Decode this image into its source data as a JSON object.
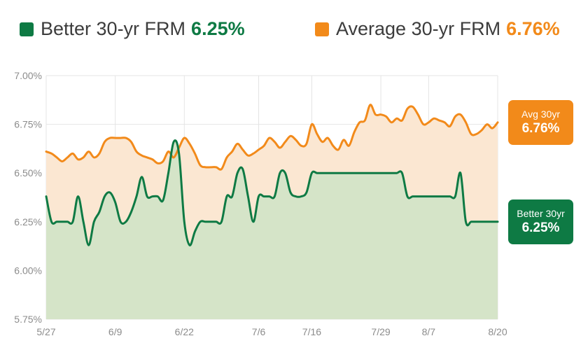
{
  "legend": {
    "better_label": "Better 30-yr FRM",
    "better_value": "6.25%",
    "average_label": "Average 30-yr FRM",
    "average_value": "6.76%"
  },
  "badges": {
    "avg_label": "Avg 30yr",
    "avg_value": "6.76%",
    "better_label": "Better 30yr",
    "better_value": "6.25%"
  },
  "colors": {
    "better": "#0e7a44",
    "better_fill": "#d5e4c8",
    "average": "#f28a1a",
    "average_fill": "#fbe7d2",
    "grid": "#e4e4e4",
    "tick_text": "#8c8c8c"
  },
  "chart_data": {
    "type": "line",
    "title": "",
    "xlabel": "",
    "ylabel": "",
    "ylim": [
      5.75,
      7.0
    ],
    "y_ticks": [
      "5.75%",
      "6.00%",
      "6.25%",
      "6.50%",
      "6.75%",
      "7.00%"
    ],
    "x_ticks": [
      "5/27",
      "6/9",
      "6/22",
      "7/6",
      "7/16",
      "7/29",
      "8/7",
      "8/20"
    ],
    "x_range": [
      "2024-05-27",
      "2024-08-20"
    ],
    "grid": true,
    "legend_position": "top",
    "series": [
      {
        "name": "Average 30-yr FRM",
        "color": "#f28a1a",
        "points": [
          [
            "2024-05-27",
            6.61
          ],
          [
            "2024-05-28",
            6.6
          ],
          [
            "2024-05-29",
            6.58
          ],
          [
            "2024-05-30",
            6.56
          ],
          [
            "2024-05-31",
            6.58
          ],
          [
            "2024-06-01",
            6.6
          ],
          [
            "2024-06-02",
            6.57
          ],
          [
            "2024-06-03",
            6.58
          ],
          [
            "2024-06-04",
            6.61
          ],
          [
            "2024-06-05",
            6.58
          ],
          [
            "2024-06-06",
            6.6
          ],
          [
            "2024-06-07",
            6.66
          ],
          [
            "2024-06-08",
            6.68
          ],
          [
            "2024-06-09",
            6.68
          ],
          [
            "2024-06-10",
            6.68
          ],
          [
            "2024-06-11",
            6.68
          ],
          [
            "2024-06-12",
            6.66
          ],
          [
            "2024-06-13",
            6.61
          ],
          [
            "2024-06-14",
            6.59
          ],
          [
            "2024-06-15",
            6.58
          ],
          [
            "2024-06-16",
            6.57
          ],
          [
            "2024-06-17",
            6.55
          ],
          [
            "2024-06-18",
            6.56
          ],
          [
            "2024-06-19",
            6.61
          ],
          [
            "2024-06-20",
            6.58
          ],
          [
            "2024-06-21",
            6.63
          ],
          [
            "2024-06-22",
            6.68
          ],
          [
            "2024-06-23",
            6.65
          ],
          [
            "2024-06-24",
            6.6
          ],
          [
            "2024-06-25",
            6.54
          ],
          [
            "2024-06-26",
            6.53
          ],
          [
            "2024-06-27",
            6.53
          ],
          [
            "2024-06-28",
            6.53
          ],
          [
            "2024-06-29",
            6.52
          ],
          [
            "2024-06-30",
            6.58
          ],
          [
            "2024-07-01",
            6.61
          ],
          [
            "2024-07-02",
            6.65
          ],
          [
            "2024-07-03",
            6.62
          ],
          [
            "2024-07-04",
            6.59
          ],
          [
            "2024-07-05",
            6.6
          ],
          [
            "2024-07-06",
            6.62
          ],
          [
            "2024-07-07",
            6.64
          ],
          [
            "2024-07-08",
            6.68
          ],
          [
            "2024-07-09",
            6.66
          ],
          [
            "2024-07-10",
            6.63
          ],
          [
            "2024-07-11",
            6.66
          ],
          [
            "2024-07-12",
            6.69
          ],
          [
            "2024-07-13",
            6.67
          ],
          [
            "2024-07-14",
            6.64
          ],
          [
            "2024-07-15",
            6.65
          ],
          [
            "2024-07-16",
            6.75
          ],
          [
            "2024-07-17",
            6.7
          ],
          [
            "2024-07-18",
            6.66
          ],
          [
            "2024-07-19",
            6.68
          ],
          [
            "2024-07-20",
            6.64
          ],
          [
            "2024-07-21",
            6.62
          ],
          [
            "2024-07-22",
            6.67
          ],
          [
            "2024-07-23",
            6.64
          ],
          [
            "2024-07-24",
            6.71
          ],
          [
            "2024-07-25",
            6.76
          ],
          [
            "2024-07-26",
            6.77
          ],
          [
            "2024-07-27",
            6.85
          ],
          [
            "2024-07-28",
            6.8
          ],
          [
            "2024-07-29",
            6.8
          ],
          [
            "2024-07-30",
            6.79
          ],
          [
            "2024-07-31",
            6.76
          ],
          [
            "2024-08-01",
            6.78
          ],
          [
            "2024-08-02",
            6.77
          ],
          [
            "2024-08-03",
            6.83
          ],
          [
            "2024-08-04",
            6.84
          ],
          [
            "2024-08-05",
            6.8
          ],
          [
            "2024-08-06",
            6.75
          ],
          [
            "2024-08-07",
            6.76
          ],
          [
            "2024-08-08",
            6.78
          ],
          [
            "2024-08-09",
            6.77
          ],
          [
            "2024-08-10",
            6.76
          ],
          [
            "2024-08-11",
            6.74
          ],
          [
            "2024-08-12",
            6.79
          ],
          [
            "2024-08-13",
            6.8
          ],
          [
            "2024-08-14",
            6.76
          ],
          [
            "2024-08-15",
            6.7
          ],
          [
            "2024-08-16",
            6.7
          ],
          [
            "2024-08-17",
            6.72
          ],
          [
            "2024-08-18",
            6.75
          ],
          [
            "2024-08-19",
            6.73
          ],
          [
            "2024-08-20",
            6.76
          ]
        ]
      },
      {
        "name": "Better 30-yr FRM",
        "color": "#0e7a44",
        "points": [
          [
            "2024-05-27",
            6.38
          ],
          [
            "2024-05-28",
            6.25
          ],
          [
            "2024-05-29",
            6.25
          ],
          [
            "2024-05-30",
            6.25
          ],
          [
            "2024-05-31",
            6.25
          ],
          [
            "2024-06-01",
            6.25
          ],
          [
            "2024-06-02",
            6.38
          ],
          [
            "2024-06-03",
            6.25
          ],
          [
            "2024-06-04",
            6.13
          ],
          [
            "2024-06-05",
            6.25
          ],
          [
            "2024-06-06",
            6.3
          ],
          [
            "2024-06-07",
            6.38
          ],
          [
            "2024-06-08",
            6.4
          ],
          [
            "2024-06-09",
            6.35
          ],
          [
            "2024-06-10",
            6.25
          ],
          [
            "2024-06-11",
            6.25
          ],
          [
            "2024-06-12",
            6.3
          ],
          [
            "2024-06-13",
            6.38
          ],
          [
            "2024-06-14",
            6.48
          ],
          [
            "2024-06-15",
            6.38
          ],
          [
            "2024-06-16",
            6.38
          ],
          [
            "2024-06-17",
            6.38
          ],
          [
            "2024-06-18",
            6.36
          ],
          [
            "2024-06-19",
            6.5
          ],
          [
            "2024-06-20",
            6.66
          ],
          [
            "2024-06-21",
            6.6
          ],
          [
            "2024-06-22",
            6.25
          ],
          [
            "2024-06-23",
            6.13
          ],
          [
            "2024-06-24",
            6.2
          ],
          [
            "2024-06-25",
            6.25
          ],
          [
            "2024-06-26",
            6.25
          ],
          [
            "2024-06-27",
            6.25
          ],
          [
            "2024-06-28",
            6.25
          ],
          [
            "2024-06-29",
            6.25
          ],
          [
            "2024-06-30",
            6.38
          ],
          [
            "2024-07-01",
            6.38
          ],
          [
            "2024-07-02",
            6.5
          ],
          [
            "2024-07-03",
            6.52
          ],
          [
            "2024-07-04",
            6.38
          ],
          [
            "2024-07-05",
            6.25
          ],
          [
            "2024-07-06",
            6.38
          ],
          [
            "2024-07-07",
            6.38
          ],
          [
            "2024-07-08",
            6.38
          ],
          [
            "2024-07-09",
            6.38
          ],
          [
            "2024-07-10",
            6.5
          ],
          [
            "2024-07-11",
            6.5
          ],
          [
            "2024-07-12",
            6.4
          ],
          [
            "2024-07-13",
            6.38
          ],
          [
            "2024-07-14",
            6.38
          ],
          [
            "2024-07-15",
            6.4
          ],
          [
            "2024-07-16",
            6.5
          ],
          [
            "2024-07-17",
            6.5
          ],
          [
            "2024-07-18",
            6.5
          ],
          [
            "2024-07-19",
            6.5
          ],
          [
            "2024-07-20",
            6.5
          ],
          [
            "2024-07-21",
            6.5
          ],
          [
            "2024-07-22",
            6.5
          ],
          [
            "2024-07-23",
            6.5
          ],
          [
            "2024-07-24",
            6.5
          ],
          [
            "2024-07-25",
            6.5
          ],
          [
            "2024-07-26",
            6.5
          ],
          [
            "2024-07-27",
            6.5
          ],
          [
            "2024-07-28",
            6.5
          ],
          [
            "2024-07-29",
            6.5
          ],
          [
            "2024-07-30",
            6.5
          ],
          [
            "2024-07-31",
            6.5
          ],
          [
            "2024-08-01",
            6.5
          ],
          [
            "2024-08-02",
            6.5
          ],
          [
            "2024-08-03",
            6.38
          ],
          [
            "2024-08-04",
            6.38
          ],
          [
            "2024-08-05",
            6.38
          ],
          [
            "2024-08-06",
            6.38
          ],
          [
            "2024-08-07",
            6.38
          ],
          [
            "2024-08-08",
            6.38
          ],
          [
            "2024-08-09",
            6.38
          ],
          [
            "2024-08-10",
            6.38
          ],
          [
            "2024-08-11",
            6.38
          ],
          [
            "2024-08-12",
            6.38
          ],
          [
            "2024-08-13",
            6.5
          ],
          [
            "2024-08-14",
            6.25
          ],
          [
            "2024-08-15",
            6.25
          ],
          [
            "2024-08-16",
            6.25
          ],
          [
            "2024-08-17",
            6.25
          ],
          [
            "2024-08-18",
            6.25
          ],
          [
            "2024-08-19",
            6.25
          ],
          [
            "2024-08-20",
            6.25
          ]
        ]
      }
    ]
  }
}
